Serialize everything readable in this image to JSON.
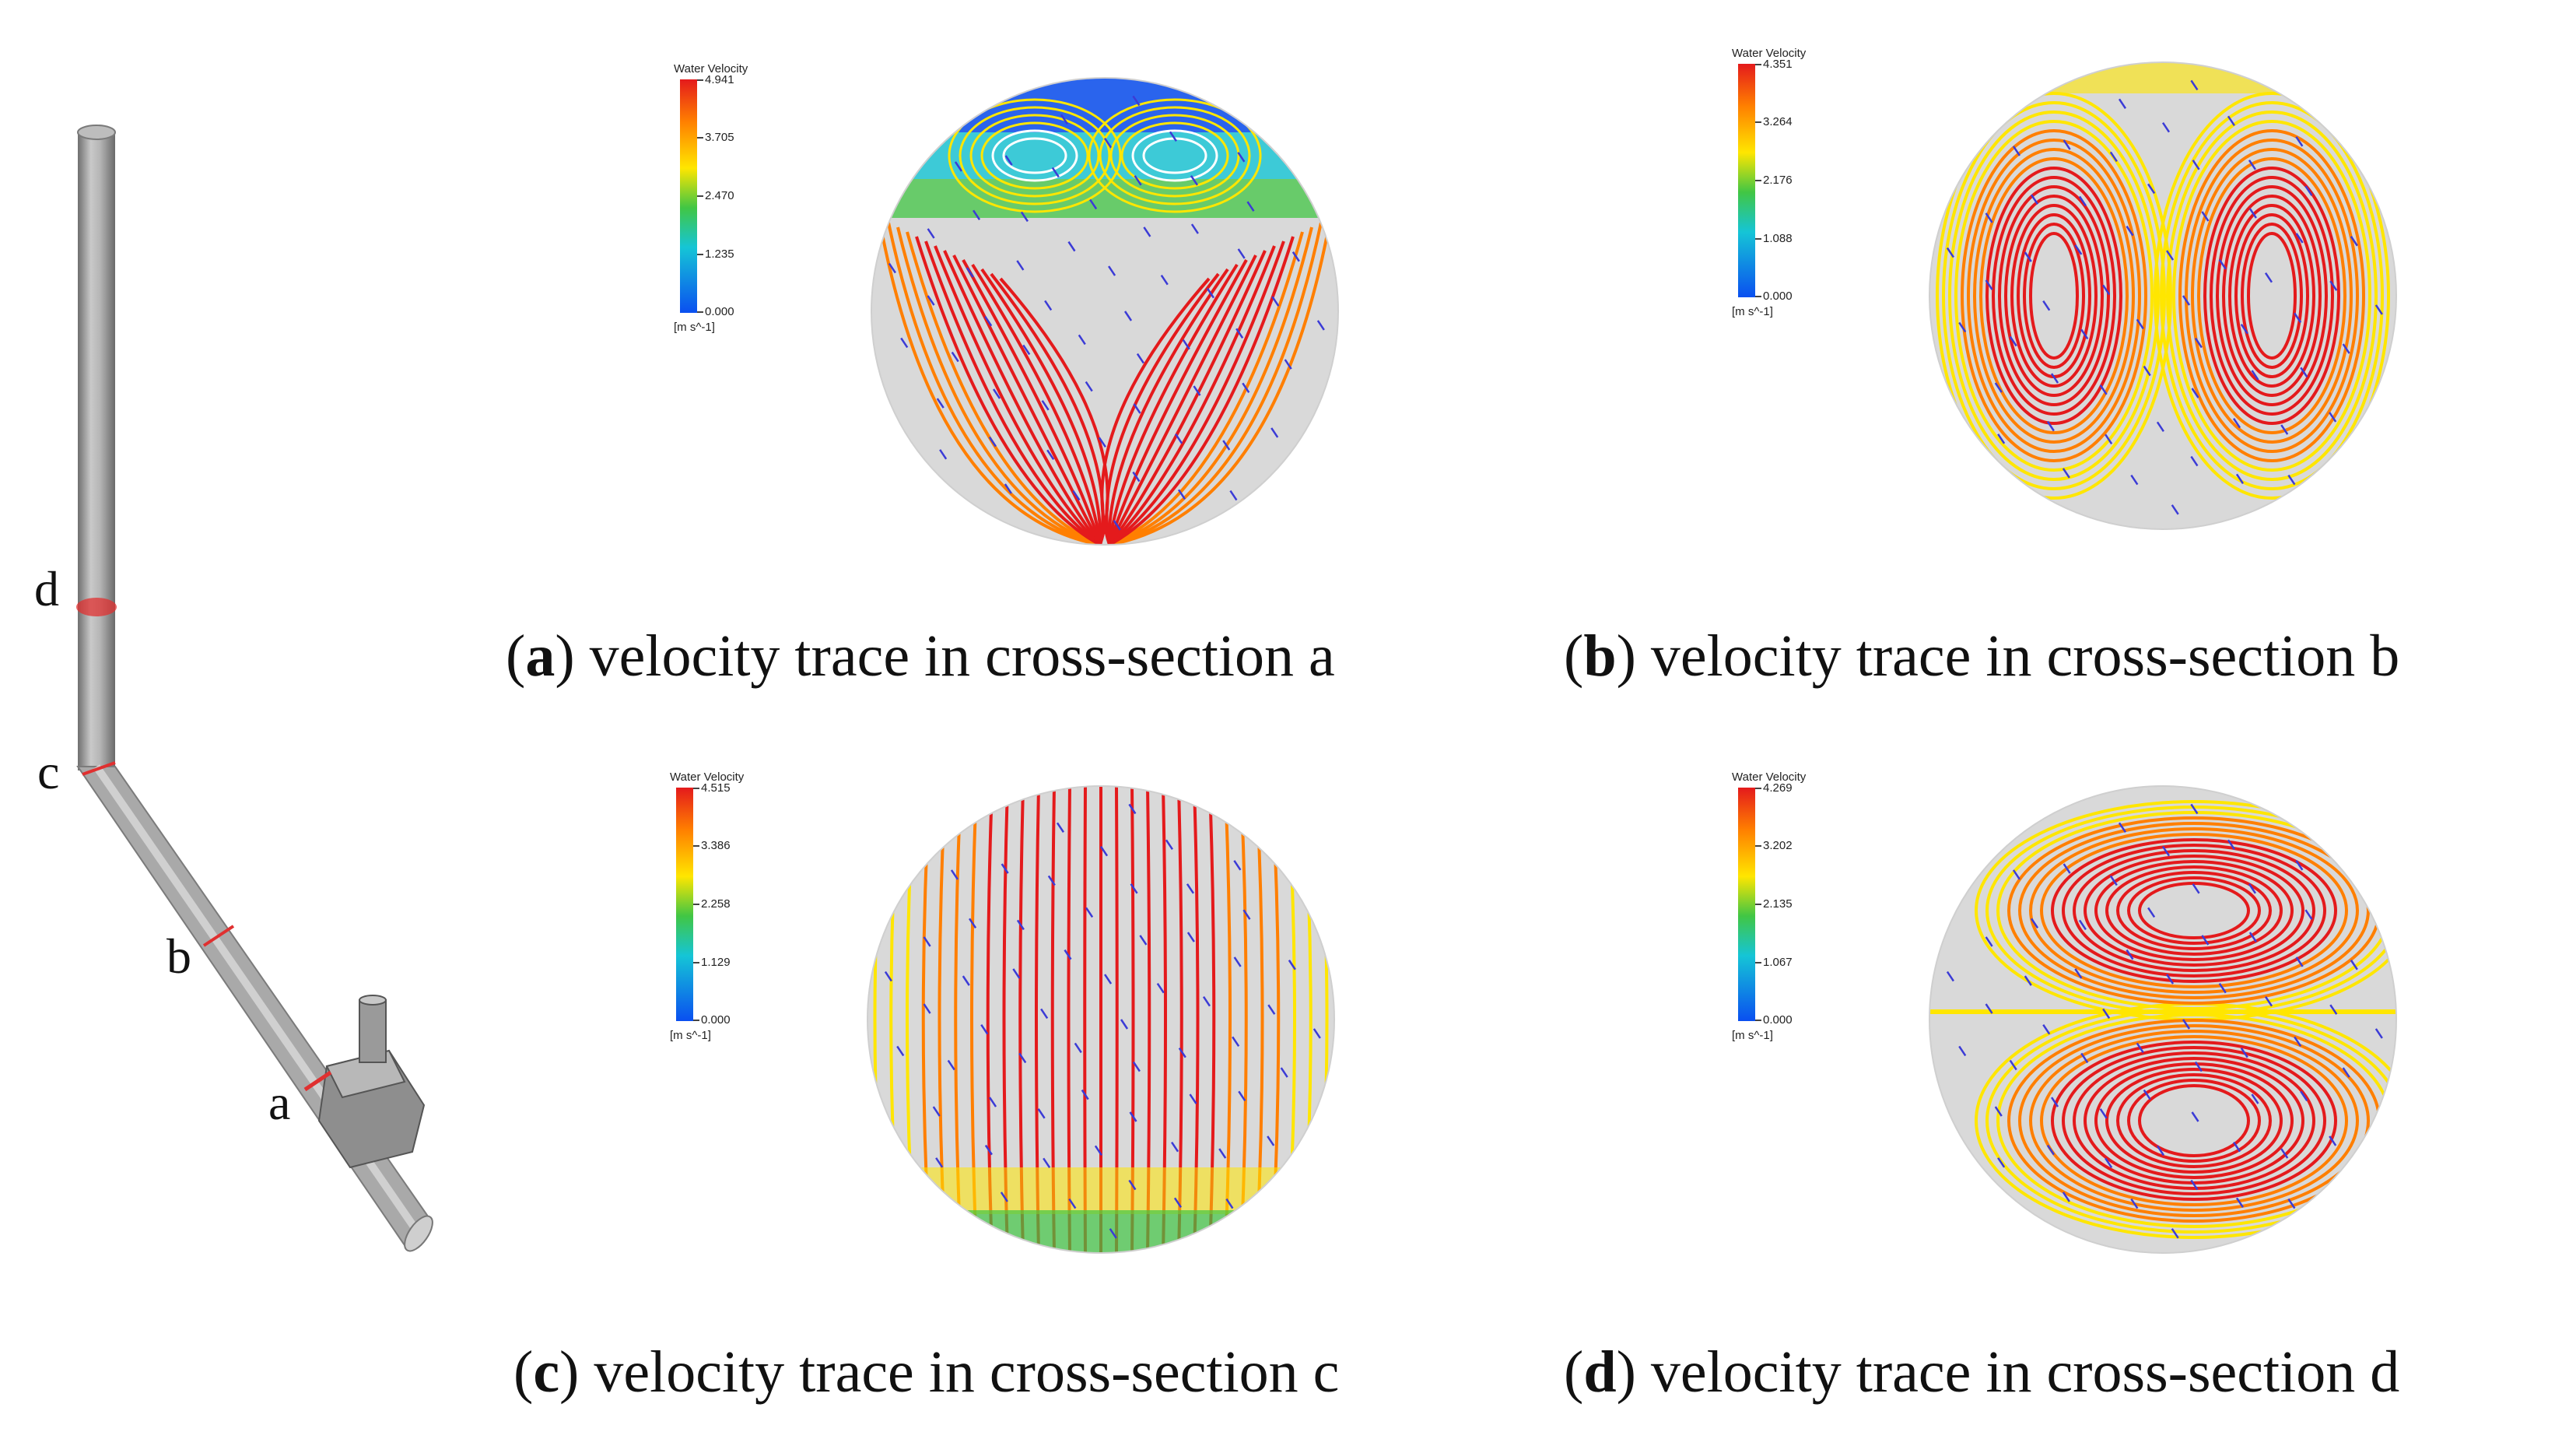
{
  "figure": {
    "pipe_labels": {
      "d": "d",
      "c": "c",
      "b": "b",
      "a": "a"
    },
    "legend_title": "Water Velocity",
    "legend_unit": "[m s^-1]",
    "panels": [
      {
        "id": "a",
        "letter": "a",
        "caption_rest": "velocity trace in cross-section a",
        "ticks": [
          "4.941",
          "3.705",
          "2.470",
          "1.235",
          "0.000"
        ],
        "pattern": "a"
      },
      {
        "id": "b",
        "letter": "b",
        "caption_rest": "velocity trace in cross-section b",
        "ticks": [
          "4.351",
          "3.264",
          "2.176",
          "1.088",
          "0.000"
        ],
        "pattern": "b"
      },
      {
        "id": "c",
        "letter": "c",
        "caption_rest": "velocity trace in cross-section c",
        "ticks": [
          "4.515",
          "3.386",
          "2.258",
          "1.129",
          "0.000"
        ],
        "pattern": "c"
      },
      {
        "id": "d",
        "letter": "d",
        "caption_rest": "velocity trace in cross-section d",
        "ticks": [
          "4.269",
          "3.202",
          "2.135",
          "1.067",
          "0.000"
        ],
        "pattern": "d"
      }
    ],
    "colors": {
      "high": "#e41a1c",
      "orange": "#ff7f00",
      "yellow": "#ffe600",
      "green": "#41c644",
      "cyan": "#15c5d6",
      "blue": "#0a4ff0",
      "disk": "#d9d9d9",
      "vector": "#3b3bd6",
      "pipe": "#9a9a9a",
      "section": "#e03030"
    }
  }
}
